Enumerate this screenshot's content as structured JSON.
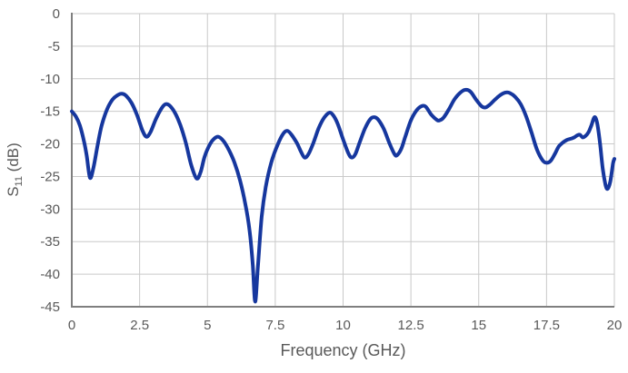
{
  "figure": {
    "background": "#ffffff",
    "line_color": "#16379e",
    "grid_color": "#c9c9c9",
    "axis_color": "#7f7f7f",
    "text_color": "#595959"
  },
  "chart_data": {
    "type": "line",
    "title": "",
    "xlabel": "Frequency (GHz)",
    "ylabel": "S11 (dB)",
    "ylabel_parts": {
      "base": "S",
      "sub": "11",
      "rest": " (dB)"
    },
    "xlim": [
      0,
      20
    ],
    "ylim": [
      -45,
      0
    ],
    "grid": true,
    "legend": false,
    "xticks": {
      "values": [
        0,
        2.5,
        5,
        7.5,
        10,
        12.5,
        15,
        17.5,
        20
      ],
      "labels": [
        "0",
        "2.5",
        "5",
        "7.5",
        "10",
        "12.5",
        "15",
        "17.5",
        "20"
      ]
    },
    "yticks": {
      "values": [
        0,
        -5,
        -10,
        -15,
        -20,
        -25,
        -30,
        -35,
        -40,
        -45
      ],
      "labels": [
        "0",
        "-5",
        "-10",
        "-15",
        "-20",
        "-25",
        "-30",
        "-35",
        "-40",
        "-45"
      ]
    },
    "series": [
      {
        "name": "S11",
        "color": "#16379e",
        "points": [
          [
            0,
            -15
          ],
          [
            0.15,
            -15.8
          ],
          [
            0.3,
            -17.2
          ],
          [
            0.45,
            -19.6
          ],
          [
            0.55,
            -21.8
          ],
          [
            0.67,
            -25.2
          ],
          [
            0.8,
            -23.6
          ],
          [
            0.95,
            -20.2
          ],
          [
            1.1,
            -17.2
          ],
          [
            1.3,
            -14.7
          ],
          [
            1.5,
            -13.2
          ],
          [
            1.7,
            -12.5
          ],
          [
            1.85,
            -12.3
          ],
          [
            2.0,
            -12.6
          ],
          [
            2.2,
            -13.7
          ],
          [
            2.4,
            -15.5
          ],
          [
            2.6,
            -17.9
          ],
          [
            2.75,
            -18.9
          ],
          [
            2.9,
            -18.2
          ],
          [
            3.1,
            -16.2
          ],
          [
            3.3,
            -14.6
          ],
          [
            3.45,
            -13.9
          ],
          [
            3.6,
            -14.1
          ],
          [
            3.8,
            -15.2
          ],
          [
            4.0,
            -17.1
          ],
          [
            4.2,
            -19.8
          ],
          [
            4.4,
            -23.2
          ],
          [
            4.6,
            -25.3
          ],
          [
            4.75,
            -24.3
          ],
          [
            4.9,
            -21.9
          ],
          [
            5.1,
            -20.0
          ],
          [
            5.25,
            -19.2
          ],
          [
            5.4,
            -18.9
          ],
          [
            5.6,
            -19.6
          ],
          [
            5.8,
            -21.0
          ],
          [
            6.0,
            -22.9
          ],
          [
            6.2,
            -25.6
          ],
          [
            6.4,
            -29.3
          ],
          [
            6.55,
            -33.2
          ],
          [
            6.67,
            -38.5
          ],
          [
            6.76,
            -44.2
          ],
          [
            6.86,
            -38.8
          ],
          [
            7.0,
            -31.2
          ],
          [
            7.15,
            -26.6
          ],
          [
            7.35,
            -22.9
          ],
          [
            7.6,
            -20.0
          ],
          [
            7.8,
            -18.4
          ],
          [
            7.95,
            -18.0
          ],
          [
            8.1,
            -18.6
          ],
          [
            8.3,
            -19.9
          ],
          [
            8.45,
            -21.2
          ],
          [
            8.58,
            -22.1
          ],
          [
            8.72,
            -21.6
          ],
          [
            8.9,
            -19.9
          ],
          [
            9.1,
            -17.6
          ],
          [
            9.3,
            -16.0
          ],
          [
            9.5,
            -15.2
          ],
          [
            9.65,
            -15.7
          ],
          [
            9.8,
            -16.9
          ],
          [
            10.0,
            -19.3
          ],
          [
            10.2,
            -21.5
          ],
          [
            10.32,
            -22.1
          ],
          [
            10.45,
            -21.6
          ],
          [
            10.6,
            -19.9
          ],
          [
            10.8,
            -17.7
          ],
          [
            11.0,
            -16.2
          ],
          [
            11.15,
            -15.9
          ],
          [
            11.3,
            -16.3
          ],
          [
            11.5,
            -17.7
          ],
          [
            11.7,
            -19.8
          ],
          [
            11.9,
            -21.6
          ],
          [
            12.0,
            -21.7
          ],
          [
            12.15,
            -20.7
          ],
          [
            12.3,
            -18.8
          ],
          [
            12.5,
            -16.4
          ],
          [
            12.7,
            -14.9
          ],
          [
            12.9,
            -14.2
          ],
          [
            13.05,
            -14.3
          ],
          [
            13.25,
            -15.5
          ],
          [
            13.45,
            -16.3
          ],
          [
            13.55,
            -16.4
          ],
          [
            13.7,
            -16.0
          ],
          [
            13.9,
            -14.7
          ],
          [
            14.1,
            -13.2
          ],
          [
            14.3,
            -12.2
          ],
          [
            14.5,
            -11.7
          ],
          [
            14.7,
            -12.0
          ],
          [
            14.9,
            -13.2
          ],
          [
            15.1,
            -14.2
          ],
          [
            15.25,
            -14.4
          ],
          [
            15.4,
            -14.0
          ],
          [
            15.6,
            -13.2
          ],
          [
            15.8,
            -12.5
          ],
          [
            16.0,
            -12.1
          ],
          [
            16.15,
            -12.2
          ],
          [
            16.35,
            -12.8
          ],
          [
            16.55,
            -13.9
          ],
          [
            16.75,
            -15.8
          ],
          [
            16.95,
            -18.3
          ],
          [
            17.15,
            -20.9
          ],
          [
            17.35,
            -22.5
          ],
          [
            17.5,
            -22.9
          ],
          [
            17.65,
            -22.6
          ],
          [
            17.8,
            -21.6
          ],
          [
            17.95,
            -20.4
          ],
          [
            18.1,
            -19.8
          ],
          [
            18.25,
            -19.4
          ],
          [
            18.4,
            -19.2
          ],
          [
            18.52,
            -19.0
          ],
          [
            18.63,
            -18.7
          ],
          [
            18.73,
            -18.6
          ],
          [
            18.83,
            -19.0
          ],
          [
            18.93,
            -18.8
          ],
          [
            19.05,
            -18.2
          ],
          [
            19.15,
            -17.2
          ],
          [
            19.27,
            -15.9
          ],
          [
            19.37,
            -16.9
          ],
          [
            19.47,
            -19.9
          ],
          [
            19.57,
            -23.8
          ],
          [
            19.67,
            -26.2
          ],
          [
            19.75,
            -26.9
          ],
          [
            19.85,
            -25.8
          ],
          [
            19.95,
            -23.0
          ],
          [
            20.0,
            -22.3
          ]
        ]
      }
    ]
  }
}
